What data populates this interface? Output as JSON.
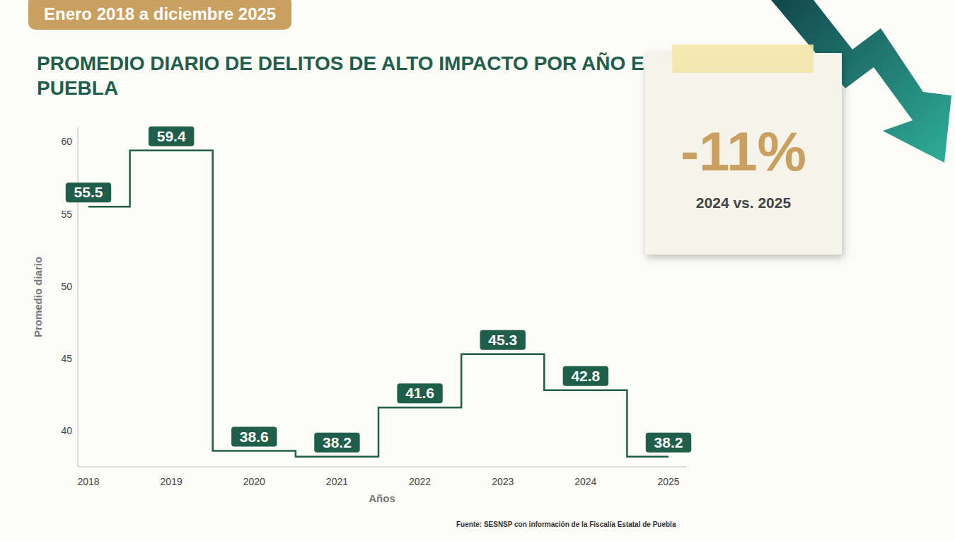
{
  "chart_data": {
    "type": "line",
    "title": "PROMEDIO DIARIO DE DELITOS DE ALTO IMPACTO POR AÑO EN PUEBLA",
    "subtitle": "Enero 2018 a diciembre 2025",
    "x_label": "Años",
    "y_label": "Promedio diario",
    "categories": [
      "2018",
      "2019",
      "2020",
      "2021",
      "2022",
      "2023",
      "2024",
      "2025"
    ],
    "values": [
      55.5,
      59.4,
      38.6,
      38.2,
      41.6,
      45.3,
      42.8,
      38.2
    ],
    "color": "#1f5e4b",
    "line_style": "step",
    "ylim": [
      37.5,
      61
    ],
    "yticks": [
      40,
      45,
      50,
      55,
      60
    ],
    "grid": false,
    "data_labels": true,
    "annotation": {
      "text": "-11%",
      "caption": "2024 vs. 2025"
    },
    "source": "Fuente: SESNSP con información de la Fiscalía Estatal de Puebla"
  }
}
